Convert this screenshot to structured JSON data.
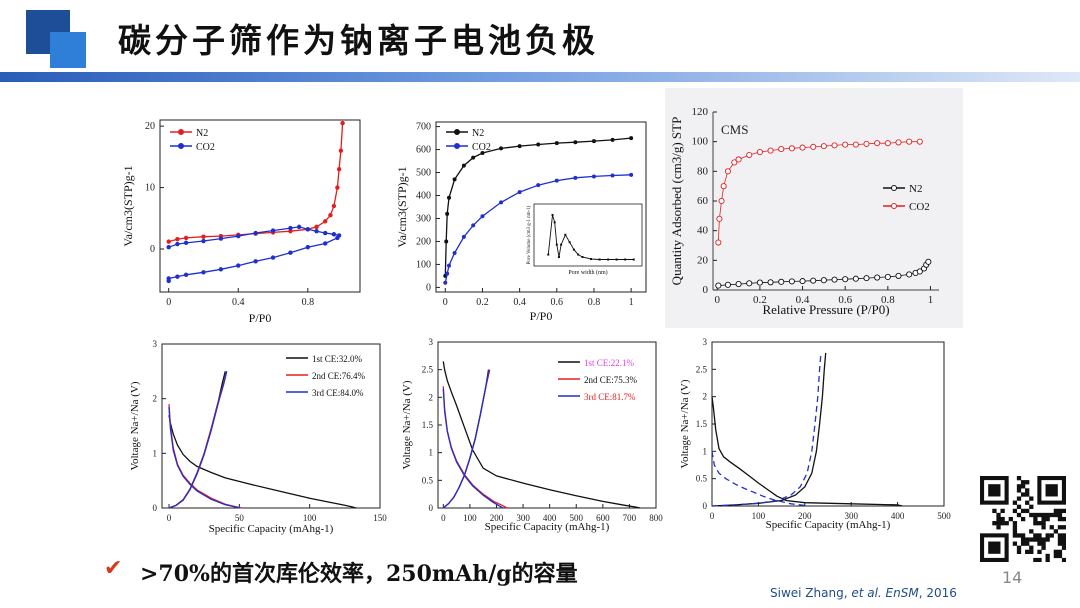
{
  "slide": {
    "title": "碳分子筛作为钠离子电池负极",
    "bullet": ">70%的首次库伦效率，250mAh/g的容量",
    "page_number": "14",
    "citation_author": "Siwei Zhang, ",
    "citation_etal": "et al. EnSM",
    "citation_year": ", 2016"
  },
  "colors": {
    "red": "#e02020",
    "blue": "#1f2fd0",
    "black": "#111111",
    "accent_blue": "#1f4e99"
  },
  "chart_data": [
    {
      "type": "line",
      "ylabel": "Va/cm3(STP)g-1",
      "xlabel": "P/P0",
      "xlim": [
        -0.05,
        1.1
      ],
      "ylim": [
        -7,
        21
      ],
      "xticks": [
        0.0,
        0.4,
        0.8
      ],
      "yticks": [
        0,
        10,
        20
      ],
      "legend": "top-left",
      "series": [
        {
          "name": "N2",
          "color": "#e02020",
          "x": [
            0,
            0.05,
            0.1,
            0.2,
            0.3,
            0.4,
            0.5,
            0.6,
            0.7,
            0.8,
            0.85,
            0.9,
            0.93,
            0.95,
            0.97,
            0.98,
            0.99,
            1.0
          ],
          "y": [
            1.2,
            1.6,
            1.8,
            2.0,
            2.1,
            2.3,
            2.5,
            2.7,
            2.9,
            3.2,
            3.6,
            4.5,
            5.5,
            7.0,
            10.0,
            13.0,
            16.0,
            20.5
          ]
        },
        {
          "name": "CO2",
          "color": "#1f2fd0",
          "x": [
            0,
            0.05,
            0.1,
            0.2,
            0.3,
            0.4,
            0.5,
            0.6,
            0.7,
            0.75,
            0.8,
            0.85,
            0.9,
            0.95,
            0.98,
            0.97,
            0.9,
            0.8,
            0.7,
            0.6,
            0.5,
            0.4,
            0.3,
            0.2,
            0.1,
            0.05,
            0.0,
            0.0
          ],
          "y": [
            0.3,
            0.8,
            1.0,
            1.3,
            1.7,
            2.1,
            2.6,
            3.0,
            3.4,
            3.6,
            3.2,
            2.9,
            2.6,
            2.4,
            2.2,
            1.8,
            0.9,
            0.3,
            -0.6,
            -1.4,
            -2.0,
            -2.7,
            -3.3,
            -3.8,
            -4.2,
            -4.5,
            -4.8,
            -5.2
          ]
        }
      ]
    },
    {
      "type": "line",
      "ylabel": "Va/cm3(STP)g-1",
      "xlabel": "P/P0",
      "xlim": [
        -0.05,
        1.08
      ],
      "ylim": [
        -20,
        720
      ],
      "xticks": [
        0.0,
        0.2,
        0.4,
        0.6,
        0.8,
        1.0
      ],
      "yticks": [
        0,
        100,
        200,
        300,
        400,
        500,
        600,
        700
      ],
      "legend": "top-left",
      "series": [
        {
          "name": "N2",
          "color": "#111111",
          "x": [
            0,
            0.005,
            0.01,
            0.02,
            0.05,
            0.1,
            0.15,
            0.2,
            0.3,
            0.4,
            0.5,
            0.6,
            0.7,
            0.8,
            0.9,
            1.0
          ],
          "y": [
            50,
            200,
            320,
            390,
            470,
            530,
            565,
            585,
            605,
            615,
            622,
            628,
            632,
            637,
            642,
            650
          ]
        },
        {
          "name": "CO2",
          "color": "#1f2fd0",
          "x": [
            0,
            0.01,
            0.02,
            0.05,
            0.1,
            0.15,
            0.2,
            0.3,
            0.4,
            0.5,
            0.6,
            0.7,
            0.8,
            0.9,
            1.0
          ],
          "y": [
            20,
            60,
            95,
            150,
            220,
            270,
            310,
            370,
            415,
            445,
            465,
            477,
            483,
            487,
            490
          ]
        }
      ],
      "inset": {
        "xlabel": "Pore width (nm)",
        "ylabel": "Pore Volume (cm3 g-1 nm-1)",
        "x": [
          0.4,
          0.5,
          0.55,
          0.6,
          0.65,
          0.7,
          0.8,
          0.9,
          1.0,
          1.1,
          1.2,
          1.4,
          1.6,
          1.8,
          2.0,
          2.2,
          2.4
        ],
        "y": [
          0.15,
          0.95,
          0.8,
          0.35,
          0.1,
          0.35,
          0.55,
          0.4,
          0.25,
          0.15,
          0.1,
          0.06,
          0.05,
          0.05,
          0.05,
          0.05,
          0.05
        ]
      }
    },
    {
      "type": "scatter",
      "annotation": "CMS",
      "ylabel": "Quantity Adsorbed (cm3/g) STP",
      "xlabel": "Relative Pressure (P/P0)",
      "xlim": [
        -0.02,
        1.04
      ],
      "ylim": [
        0,
        120
      ],
      "xticks": [
        0.0,
        0.2,
        0.4,
        0.6,
        0.8,
        1.0
      ],
      "yticks": [
        0,
        20,
        40,
        60,
        80,
        100,
        120
      ],
      "legend": "center-right",
      "series": [
        {
          "name": "N2",
          "color": "#111111",
          "x": [
            0.005,
            0.05,
            0.1,
            0.15,
            0.2,
            0.25,
            0.3,
            0.35,
            0.4,
            0.45,
            0.5,
            0.55,
            0.6,
            0.65,
            0.7,
            0.75,
            0.8,
            0.85,
            0.9,
            0.93,
            0.95,
            0.97,
            0.98,
            0.99
          ],
          "y": [
            3,
            3.5,
            4,
            4.5,
            5,
            5.2,
            5.5,
            5.8,
            6,
            6.3,
            6.6,
            7,
            7.3,
            7.6,
            8,
            8.4,
            8.8,
            9.5,
            10.5,
            11.5,
            12.5,
            14.5,
            17,
            19
          ]
        },
        {
          "name": "CO2",
          "color": "#e02020",
          "x": [
            0.005,
            0.01,
            0.02,
            0.03,
            0.05,
            0.08,
            0.1,
            0.15,
            0.2,
            0.25,
            0.3,
            0.35,
            0.4,
            0.45,
            0.5,
            0.55,
            0.6,
            0.65,
            0.7,
            0.75,
            0.8,
            0.85,
            0.9,
            0.95
          ],
          "y": [
            32,
            48,
            60,
            70,
            80,
            86,
            88,
            91,
            93,
            94,
            95,
            95.5,
            96,
            96.5,
            97,
            97.5,
            98,
            98,
            98.5,
            99,
            99,
            99.5,
            100,
            100
          ]
        }
      ]
    },
    {
      "type": "line",
      "ylabel": "Voltage Na+/Na (V)",
      "xlabel": "Specific Capacity (mAhg-1)",
      "xlim": [
        -5,
        150
      ],
      "ylim": [
        0,
        3
      ],
      "xticks": [
        0,
        50,
        100,
        150
      ],
      "yticks": [
        0,
        1,
        2,
        3
      ],
      "legend": "top-right",
      "series": [
        {
          "name": "1st",
          "label": "1st  CE:32.0%",
          "color": "#111111",
          "x": [
            0,
            1,
            3,
            6,
            10,
            15,
            20,
            30,
            40,
            60,
            80,
            100,
            115,
            125,
            130,
            133
          ],
          "y": [
            1.7,
            1.55,
            1.35,
            1.15,
            0.98,
            0.85,
            0.76,
            0.65,
            0.55,
            0.42,
            0.3,
            0.18,
            0.1,
            0.05,
            0.02,
            0.0
          ]
        },
        {
          "name": "1st-charge",
          "color": "#111111",
          "x": [
            0,
            5,
            10,
            15,
            20,
            25,
            30,
            35,
            38,
            40
          ],
          "y": [
            0.0,
            0.05,
            0.15,
            0.35,
            0.65,
            1.0,
            1.45,
            1.95,
            2.3,
            2.5
          ]
        },
        {
          "name": "2nd",
          "label": "2nd  CE:76.4%",
          "color": "#e02020",
          "x": [
            0,
            1,
            3,
            6,
            10,
            15,
            20,
            30,
            40,
            48,
            52
          ],
          "y": [
            1.9,
            1.5,
            1.1,
            0.8,
            0.6,
            0.45,
            0.33,
            0.18,
            0.07,
            0.02,
            0.0
          ]
        },
        {
          "name": "2nd-charge",
          "color": "#e02020",
          "x": [
            0,
            5,
            10,
            15,
            20,
            25,
            30,
            35,
            39,
            41
          ],
          "y": [
            0.0,
            0.05,
            0.15,
            0.35,
            0.65,
            1.0,
            1.45,
            1.95,
            2.3,
            2.5
          ]
        },
        {
          "name": "3rd",
          "label": "3rd  CE:84.0%",
          "color": "#1f2fd0",
          "x": [
            0,
            1,
            3,
            6,
            10,
            15,
            20,
            30,
            40,
            47,
            50
          ],
          "y": [
            1.85,
            1.45,
            1.05,
            0.78,
            0.58,
            0.43,
            0.31,
            0.16,
            0.06,
            0.02,
            0.0
          ]
        },
        {
          "name": "3rd-charge",
          "color": "#1f2fd0",
          "x": [
            0,
            5,
            10,
            15,
            20,
            25,
            30,
            35,
            39,
            41
          ],
          "y": [
            0.0,
            0.05,
            0.14,
            0.34,
            0.63,
            0.98,
            1.42,
            1.92,
            2.28,
            2.5
          ]
        }
      ]
    },
    {
      "type": "line",
      "ylabel": "Voltage Na+/Na (V)",
      "xlabel": "Specific Capacity (mAhg-1)",
      "xlim": [
        -20,
        800
      ],
      "ylim": [
        0,
        3
      ],
      "xticks": [
        0,
        100,
        200,
        300,
        400,
        500,
        600,
        700,
        800
      ],
      "yticks": [
        0.0,
        0.5,
        1.0,
        1.5,
        2.0,
        2.5,
        3.0
      ],
      "legend": "top-right",
      "series": [
        {
          "name": "1st",
          "label": "1st  CE:22.1%",
          "color": "#111111",
          "x": [
            0,
            5,
            15,
            30,
            50,
            80,
            110,
            150,
            200,
            300,
            400,
            500,
            600,
            680,
            720,
            740
          ],
          "y": [
            2.65,
            2.5,
            2.3,
            2.1,
            1.85,
            1.45,
            1.05,
            0.72,
            0.58,
            0.45,
            0.33,
            0.22,
            0.12,
            0.05,
            0.02,
            0.0
          ]
        },
        {
          "name": "1st-charge",
          "color": "#111111",
          "x": [
            0,
            20,
            40,
            60,
            80,
            100,
            120,
            140,
            160,
            170
          ],
          "y": [
            0.0,
            0.08,
            0.2,
            0.38,
            0.6,
            0.9,
            1.25,
            1.7,
            2.2,
            2.5
          ]
        },
        {
          "name": "2nd",
          "label": "2nd  CE:75.3%",
          "color": "#e02020",
          "x": [
            0,
            5,
            15,
            30,
            50,
            80,
            110,
            150,
            190,
            220,
            240
          ],
          "y": [
            2.2,
            1.8,
            1.4,
            1.1,
            0.85,
            0.6,
            0.42,
            0.25,
            0.12,
            0.05,
            0.0
          ]
        },
        {
          "name": "2nd-charge",
          "color": "#e02020",
          "x": [
            0,
            20,
            40,
            60,
            80,
            100,
            120,
            140,
            160,
            175
          ],
          "y": [
            0.0,
            0.08,
            0.2,
            0.38,
            0.6,
            0.9,
            1.25,
            1.7,
            2.2,
            2.5
          ]
        },
        {
          "name": "3rd",
          "label": "3rd  CE:81.7%",
          "color": "#1f2fd0",
          "x": [
            0,
            5,
            15,
            30,
            50,
            80,
            110,
            150,
            185,
            210,
            225
          ],
          "y": [
            2.15,
            1.75,
            1.38,
            1.08,
            0.83,
            0.58,
            0.4,
            0.23,
            0.11,
            0.04,
            0.0
          ]
        },
        {
          "name": "3rd-charge",
          "color": "#1f2fd0",
          "x": [
            0,
            20,
            40,
            60,
            80,
            100,
            120,
            140,
            160,
            172
          ],
          "y": [
            0.0,
            0.08,
            0.2,
            0.38,
            0.6,
            0.9,
            1.25,
            1.7,
            2.2,
            2.5
          ]
        }
      ],
      "legend_label_colors": [
        "#e040e0",
        "#111111",
        "#e02020"
      ]
    },
    {
      "type": "line",
      "ylabel": "Voltage Na+/Na (V)",
      "xlabel": "Specific Capacity (mAhg-1)",
      "xlim": [
        0,
        500
      ],
      "ylim": [
        0,
        3
      ],
      "xticks": [
        0,
        100,
        200,
        300,
        400,
        500
      ],
      "yticks": [
        0.0,
        0.5,
        1.0,
        1.5,
        2.0,
        2.5,
        3.0
      ],
      "legend": "none",
      "series": [
        {
          "name": "solid-discharge",
          "color": "#111111",
          "x": [
            0,
            3,
            8,
            15,
            25,
            40,
            60,
            80,
            100,
            120,
            140,
            160,
            200,
            300,
            400,
            410
          ],
          "y": [
            2.0,
            1.8,
            1.4,
            1.05,
            0.9,
            0.8,
            0.68,
            0.55,
            0.42,
            0.3,
            0.18,
            0.1,
            0.06,
            0.04,
            0.02,
            0.0
          ]
        },
        {
          "name": "solid-charge",
          "color": "#111111",
          "x": [
            0,
            50,
            100,
            150,
            180,
            200,
            215,
            225,
            232,
            238,
            242,
            245
          ],
          "y": [
            0.0,
            0.02,
            0.05,
            0.1,
            0.2,
            0.35,
            0.6,
            1.0,
            1.5,
            2.0,
            2.5,
            2.8
          ]
        },
        {
          "name": "dashed-discharge",
          "color": "#1f2fd0",
          "dashed": true,
          "x": [
            0,
            5,
            15,
            30,
            50,
            70,
            90,
            110,
            130,
            150,
            170,
            190,
            210
          ],
          "y": [
            1.0,
            0.75,
            0.6,
            0.5,
            0.4,
            0.32,
            0.25,
            0.18,
            0.12,
            0.08,
            0.04,
            0.02,
            0.0
          ]
        },
        {
          "name": "dashed-charge",
          "color": "#1f2fd0",
          "dashed": true,
          "x": [
            0,
            50,
            100,
            140,
            170,
            190,
            205,
            215,
            222,
            228,
            232,
            235
          ],
          "y": [
            0.0,
            0.02,
            0.05,
            0.1,
            0.2,
            0.35,
            0.6,
            1.0,
            1.5,
            2.0,
            2.5,
            2.8
          ]
        }
      ]
    }
  ]
}
